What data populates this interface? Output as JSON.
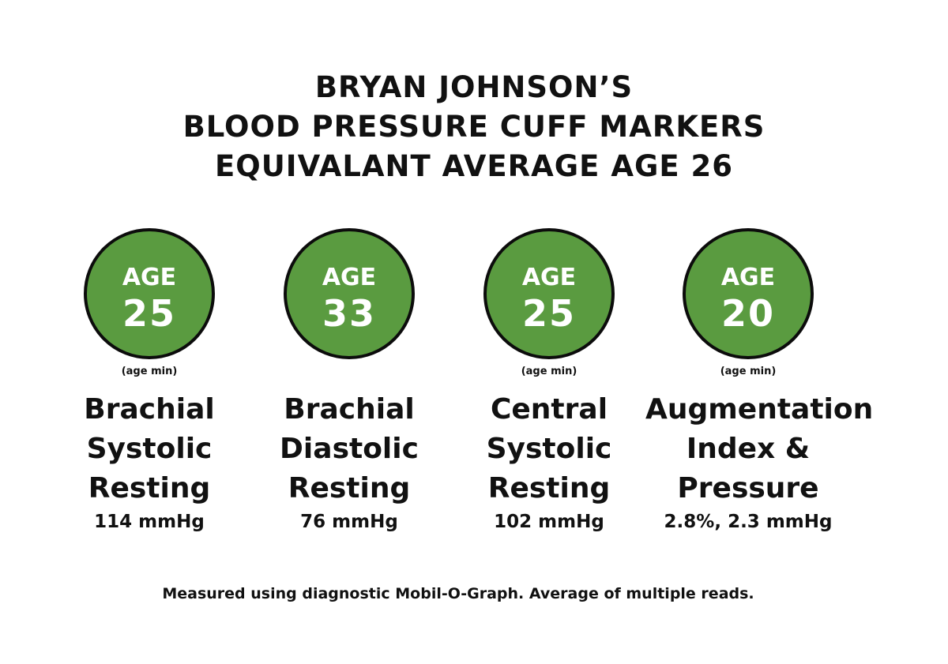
{
  "title": {
    "lines": [
      "BRYAN JOHNSON’S",
      "BLOOD PRESSURE CUFF MARKERS",
      "EQUIVALANT AVERAGE AGE 26"
    ]
  },
  "markers": [
    {
      "badge_label": "AGE",
      "age": "25",
      "note": "(age min)",
      "name_lines": [
        "Brachial",
        "Systolic",
        "Resting"
      ],
      "reading": "114 mmHg"
    },
    {
      "badge_label": "AGE",
      "age": "33",
      "note": "",
      "name_lines": [
        "Brachial",
        "Diastolic",
        "Resting"
      ],
      "reading": "76 mmHg"
    },
    {
      "badge_label": "AGE",
      "age": "25",
      "note": "(age min)",
      "name_lines": [
        "Central",
        "Systolic",
        "Resting"
      ],
      "reading": "102 mmHg"
    },
    {
      "badge_label": "AGE",
      "age": "20",
      "note": "(age min)",
      "name_lines": [
        "Augmentation",
        "Index &",
        "Pressure"
      ],
      "reading": "2.8%, 2.3 mmHg"
    }
  ],
  "footnote": "Measured using diagnostic Mobil-O-Graph. Average of multiple reads.",
  "colors": {
    "badge_fill": "#5a9b40",
    "badge_border": "#0c0c0c",
    "text": "#111111"
  }
}
